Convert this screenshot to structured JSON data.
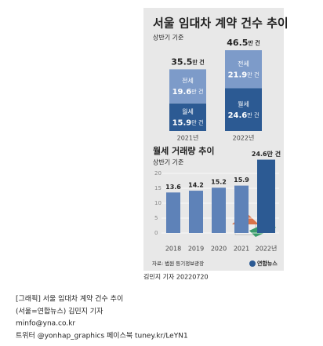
{
  "title": "서울 임대차 계약 건수 추이",
  "chart_data": [
    {
      "type": "stacked-bar",
      "title": "서울 임대차 계약 건수 추이",
      "subtitle": "상반기 기준",
      "unit": "만 건",
      "categories": [
        "2021년",
        "2022년"
      ],
      "series": [
        {
          "name": "월세",
          "color": "#2c5a93",
          "values": [
            15.9,
            24.6
          ]
        },
        {
          "name": "전세",
          "color": "#7d9bc9",
          "values": [
            19.6,
            21.9
          ]
        }
      ],
      "totals": [
        35.5,
        46.5
      ]
    },
    {
      "type": "bar",
      "title": "월세 거래량 추이",
      "subtitle": "상반기 기준",
      "categories": [
        "2018",
        "2019",
        "2020",
        "2021",
        "2022년"
      ],
      "values": [
        13.6,
        14.2,
        15.2,
        15.9,
        24.6
      ],
      "value_labels": [
        "13.6",
        "14.2",
        "15.2",
        "15.9",
        "24.6만 건"
      ],
      "colors": [
        "#5e82b8",
        "#5e82b8",
        "#5e82b8",
        "#5e82b8",
        "#2c5a93"
      ],
      "ylim": [
        0,
        25
      ],
      "yticks": [
        0,
        5,
        10,
        15,
        20
      ],
      "grid": true
    }
  ],
  "source": "자료: 법원 등기정보광장",
  "logo": "연합뉴스",
  "byline": "김민지 기자 20220720",
  "article": [
    "[그래픽] 서울 임대차 계약 건수 추이",
    "(서울=연합뉴스) 김민지 기자",
    "minfo@yna.co.kr",
    "트위터 @yonhap_graphics 페이스북 tuney.kr/LeYN1"
  ]
}
